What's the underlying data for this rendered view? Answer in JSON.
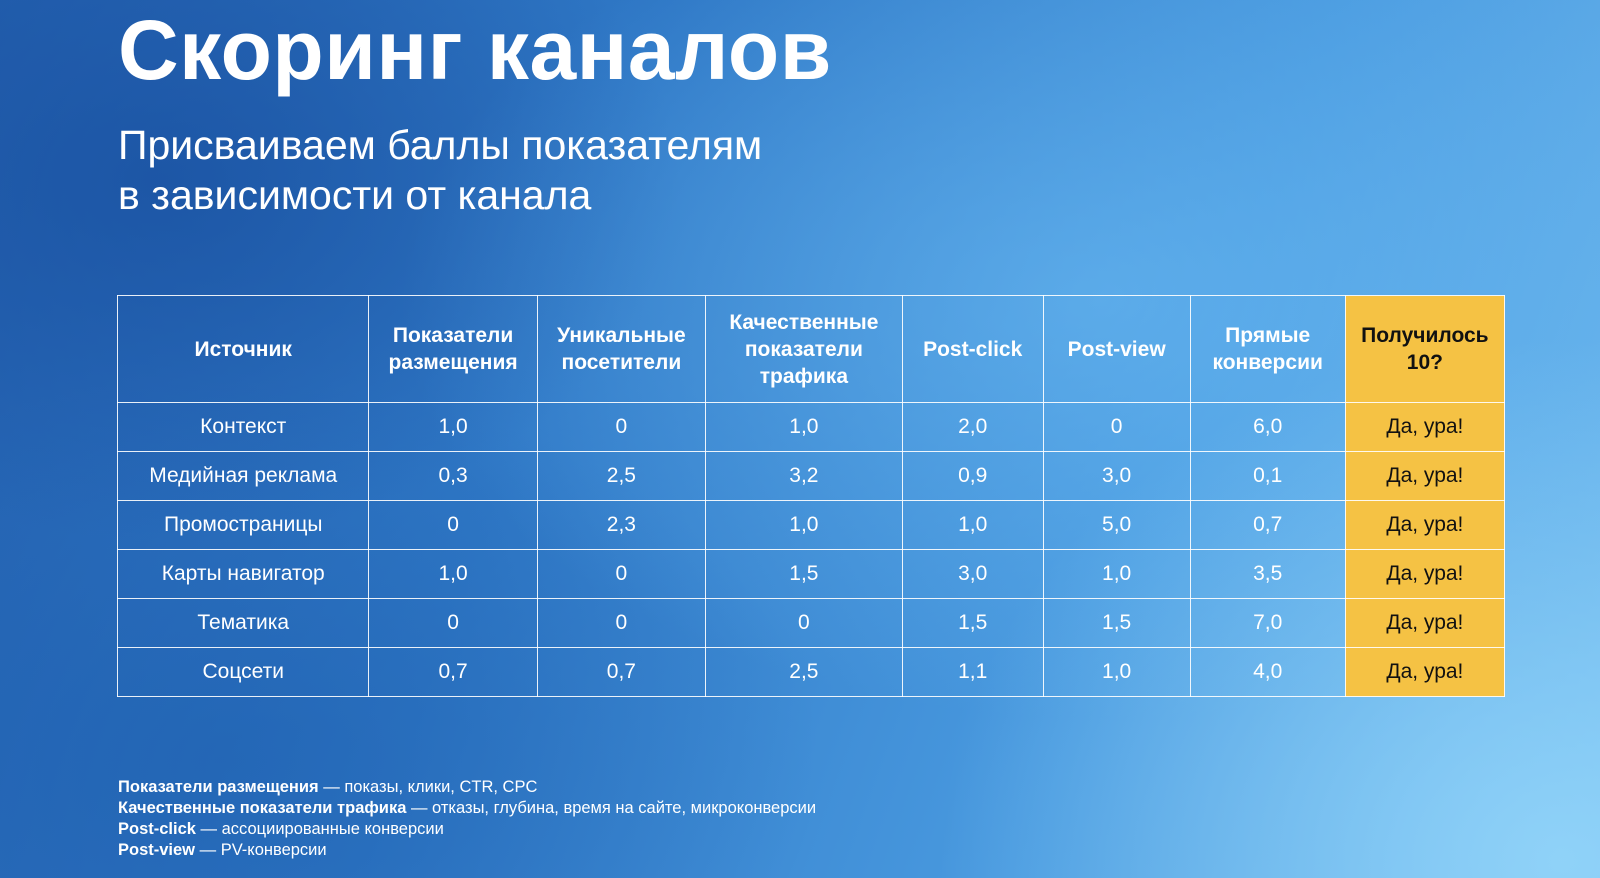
{
  "slide": {
    "title": "Скоринг каналов",
    "subtitle_lines": [
      "Присваиваем баллы показателям",
      "в зависимости от канала"
    ]
  },
  "table": {
    "headers": [
      "Источник",
      "Показатели размещения",
      "Уникальные посетители",
      "Качественные показатели трафика",
      "Post-click",
      "Post-view",
      "Прямые конверсии",
      "Получилось 10?"
    ],
    "rows": [
      [
        "Контекст",
        "1,0",
        "0",
        "1,0",
        "2,0",
        "0",
        "6,0",
        "Да, ура!"
      ],
      [
        "Медийная реклама",
        "0,3",
        "2,5",
        "3,2",
        "0,9",
        "3,0",
        "0,1",
        "Да, ура!"
      ],
      [
        "Промостраницы",
        "0",
        "2,3",
        "1,0",
        "1,0",
        "5,0",
        "0,7",
        "Да, ура!"
      ],
      [
        "Карты навигатор",
        "1,0",
        "0",
        "1,5",
        "3,0",
        "1,0",
        "3,5",
        "Да, ура!"
      ],
      [
        "Тематика",
        "0",
        "0",
        "0",
        "1,5",
        "1,5",
        "7,0",
        "Да, ура!"
      ],
      [
        "Соцсети",
        "0,7",
        "0,7",
        "2,5",
        "1,1",
        "1,0",
        "4,0",
        "Да, ура!"
      ]
    ],
    "highlight_color": "#f5c244"
  },
  "notes": [
    {
      "term": "Показатели размещения",
      "desc": " — показы, клики, CTR, CPC"
    },
    {
      "term": "Качественные показатели трафика",
      "desc": " — отказы, глубина, время на сайте, микроконверсии"
    },
    {
      "term": "Post-click",
      "desc": " — ассоциированные конверсии"
    },
    {
      "term": "Post-view",
      "desc": " — PV-конверсии"
    }
  ]
}
